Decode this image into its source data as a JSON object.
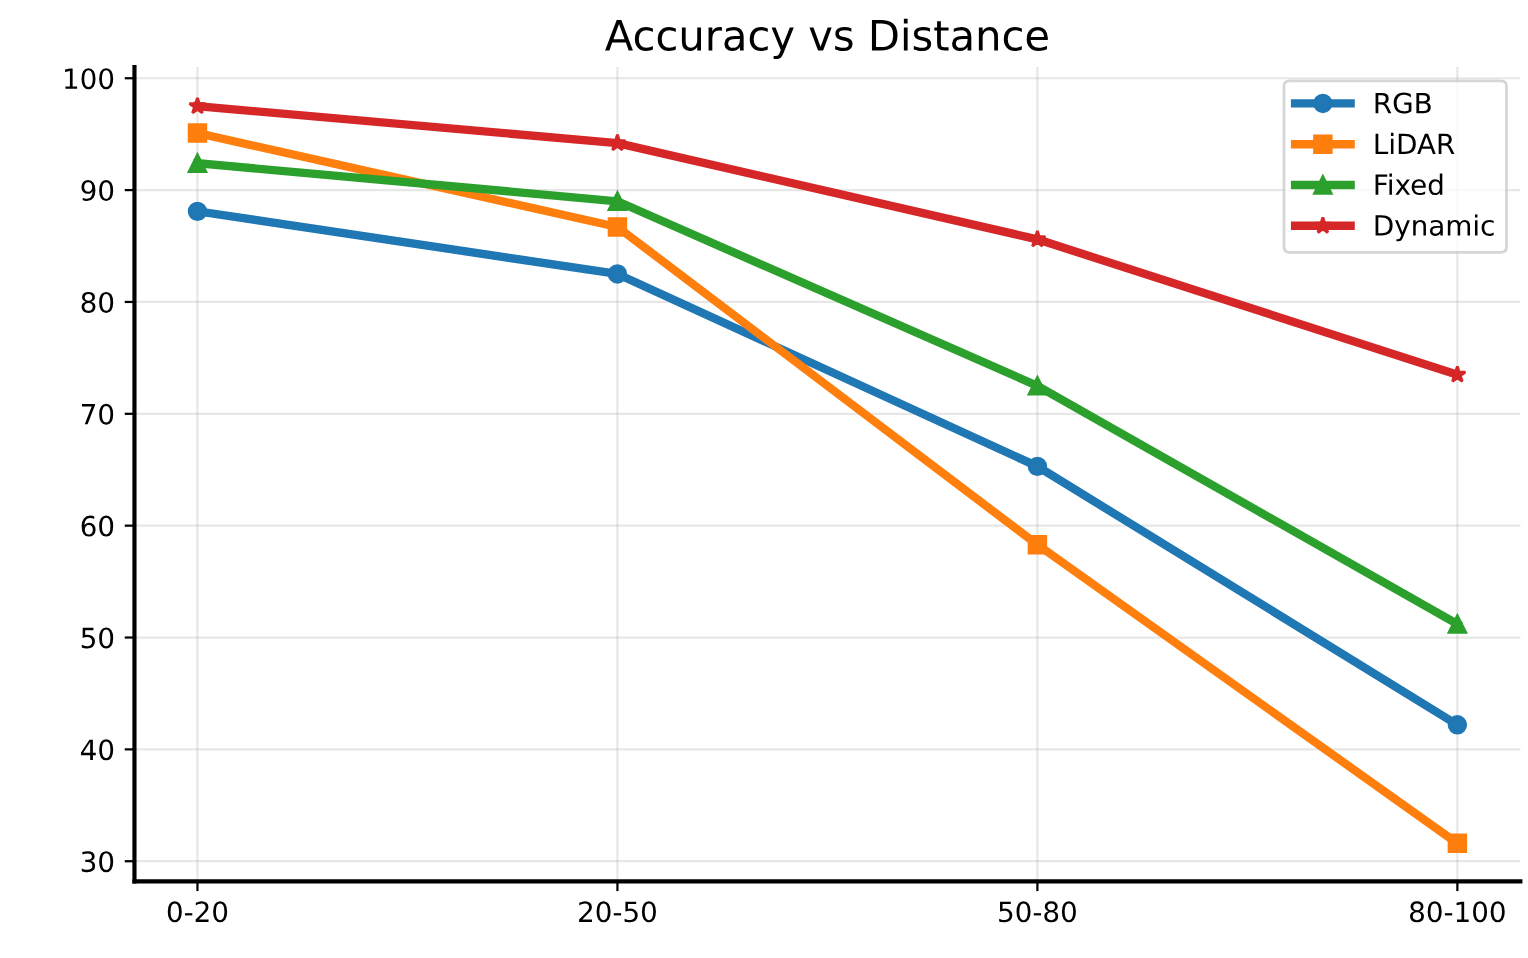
{
  "chart_data": {
    "type": "line",
    "title": "Accuracy vs Distance",
    "categories": [
      "0-20",
      "20-50",
      "50-80",
      "80-100"
    ],
    "series": [
      {
        "name": "RGB",
        "color": "#1f77b4",
        "marker": "circle",
        "values": [
          88.1,
          82.5,
          65.3,
          42.2
        ]
      },
      {
        "name": "LiDAR",
        "color": "#ff7f0e",
        "marker": "square",
        "values": [
          95.1,
          86.7,
          58.3,
          31.6
        ]
      },
      {
        "name": "Fixed",
        "color": "#2ca02c",
        "marker": "triangle",
        "values": [
          92.4,
          89.0,
          72.5,
          51.2
        ]
      },
      {
        "name": "Dynamic",
        "color": "#d62728",
        "marker": "star",
        "values": [
          97.5,
          94.2,
          85.6,
          73.5
        ]
      }
    ],
    "ylim": [
      28.2,
      101
    ],
    "yticks": [
      30,
      40,
      50,
      60,
      70,
      80,
      90,
      100
    ],
    "grid": true,
    "legend": "top right",
    "line_style": "solid"
  }
}
